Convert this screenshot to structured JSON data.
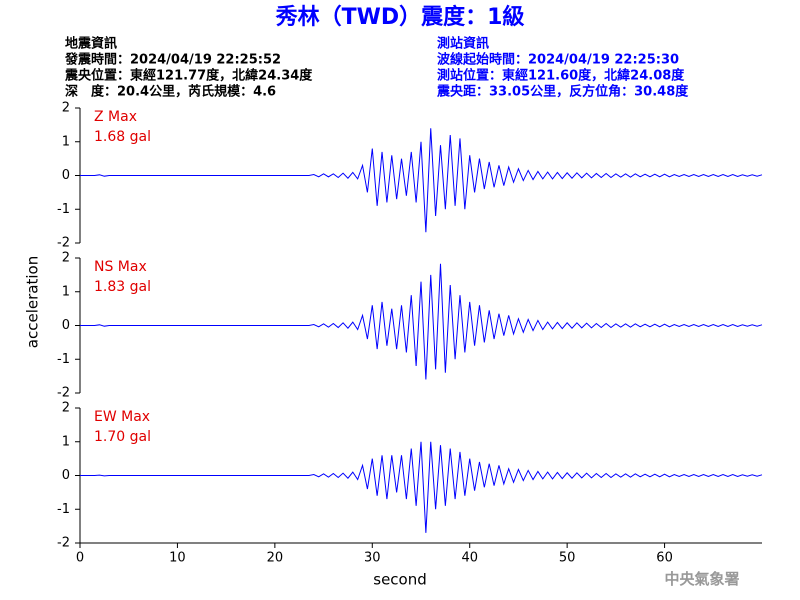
{
  "title": "秀林（TWD）震度：1級",
  "event_info": [
    "地震資訊",
    "發震時間：2024/04/19 22:25:52",
    "震央位置：東經121.77度，北緯24.34度",
    "深　度：20.4公里，芮氏規模：4.6"
  ],
  "station_info": [
    "測站資訊",
    "波線起始時間：2024/04/19 22:25:30",
    "測站位置：東經121.60度，北緯24.08度",
    "震央距：33.05公里，反方位角：30.48度"
  ],
  "ylabel": "acceleration",
  "xlabel": "second",
  "footer": "中央氣象署",
  "chart_data": [
    {
      "type": "line",
      "annotations": [
        "Z Max",
        "1.68 gal"
      ],
      "ylim": [
        -2,
        2
      ],
      "yticks": [
        -2,
        -1,
        0,
        1,
        2
      ],
      "xlim": [
        0,
        70
      ],
      "x": [
        0,
        0.5,
        1,
        1.5,
        2,
        2.5,
        3,
        3.5,
        4,
        4.5,
        5,
        5.5,
        6,
        6.5,
        7,
        7.5,
        8,
        8.5,
        9,
        9.5,
        10,
        10.5,
        11,
        11.5,
        12,
        12.5,
        13,
        13.5,
        14,
        14.5,
        15,
        15.5,
        16,
        16.5,
        17,
        17.5,
        18,
        18.5,
        19,
        19.5,
        20,
        20.5,
        21,
        21.5,
        22,
        22.5,
        23,
        23.5,
        24,
        24.5,
        25,
        25.5,
        26,
        26.5,
        27,
        27.5,
        28,
        28.5,
        29,
        29.5,
        30,
        30.5,
        31,
        31.5,
        32,
        32.5,
        33,
        33.5,
        34,
        34.5,
        35,
        35.5,
        36,
        36.5,
        37,
        37.5,
        38,
        38.5,
        39,
        39.5,
        40,
        40.5,
        41,
        41.5,
        42,
        42.5,
        43,
        43.5,
        44,
        44.5,
        45,
        45.5,
        46,
        46.5,
        47,
        47.5,
        48,
        48.5,
        49,
        49.5,
        50,
        50.5,
        51,
        51.5,
        52,
        52.5,
        53,
        53.5,
        54,
        54.5,
        55,
        55.5,
        56,
        56.5,
        57,
        57.5,
        58,
        58.5,
        59,
        59.5,
        60,
        60.5,
        61,
        61.5,
        62,
        62.5,
        63,
        63.5,
        64,
        64.5,
        65,
        65.5,
        66,
        66.5,
        67,
        67.5,
        68,
        68.5,
        69,
        69.5,
        70
      ],
      "series": [
        {
          "color": "#0000ff",
          "values": [
            0,
            0,
            0,
            0,
            0.02,
            -0.02,
            0,
            0,
            0,
            0,
            0,
            0,
            0,
            0,
            0,
            0,
            0,
            0,
            0,
            0,
            0,
            0,
            0,
            0,
            0,
            0,
            0,
            0,
            0,
            0,
            0,
            0,
            0,
            0,
            0,
            0,
            0,
            0,
            0,
            0,
            0,
            0,
            0,
            0,
            0,
            0,
            0,
            0,
            0.03,
            -0.04,
            0.05,
            -0.04,
            0.05,
            -0.06,
            0.07,
            -0.08,
            0.09,
            -0.1,
            0.3,
            -0.5,
            0.8,
            -0.9,
            0.7,
            -0.8,
            0.6,
            -0.7,
            0.5,
            -0.6,
            0.7,
            -0.8,
            1.0,
            -1.68,
            1.4,
            -1.2,
            0.9,
            -1.0,
            1.2,
            -0.9,
            1.1,
            -1.0,
            0.6,
            -0.5,
            0.5,
            -0.4,
            0.4,
            -0.35,
            0.3,
            -0.3,
            0.25,
            -0.2,
            0.2,
            -0.15,
            0.15,
            -0.12,
            0.12,
            -0.1,
            0.1,
            -0.1,
            0.09,
            -0.09,
            0.08,
            -0.08,
            0.08,
            -0.07,
            0.07,
            -0.07,
            0.06,
            -0.06,
            0.06,
            -0.06,
            0.05,
            -0.05,
            0.05,
            -0.05,
            0.05,
            -0.04,
            0.04,
            -0.04,
            0.04,
            -0.04,
            0.04,
            -0.04,
            0.03,
            -0.03,
            0.03,
            -0.03,
            0.03,
            -0.03,
            0.03,
            -0.03,
            0.03,
            -0.03,
            0.03,
            -0.03,
            0.03,
            -0.03,
            0.02,
            -0.02,
            0.02,
            -0.02,
            0.02
          ]
        }
      ]
    },
    {
      "type": "line",
      "annotations": [
        "NS Max",
        "1.83 gal"
      ],
      "ylim": [
        -2,
        2
      ],
      "yticks": [
        -2,
        -1,
        0,
        1,
        2
      ],
      "xlim": [
        0,
        70
      ],
      "x": [
        0,
        0.5,
        1,
        1.5,
        2,
        2.5,
        3,
        3.5,
        4,
        4.5,
        5,
        5.5,
        6,
        6.5,
        7,
        7.5,
        8,
        8.5,
        9,
        9.5,
        10,
        10.5,
        11,
        11.5,
        12,
        12.5,
        13,
        13.5,
        14,
        14.5,
        15,
        15.5,
        16,
        16.5,
        17,
        17.5,
        18,
        18.5,
        19,
        19.5,
        20,
        20.5,
        21,
        21.5,
        22,
        22.5,
        23,
        23.5,
        24,
        24.5,
        25,
        25.5,
        26,
        26.5,
        27,
        27.5,
        28,
        28.5,
        29,
        29.5,
        30,
        30.5,
        31,
        31.5,
        32,
        32.5,
        33,
        33.5,
        34,
        34.5,
        35,
        35.5,
        36,
        36.5,
        37,
        37.5,
        38,
        38.5,
        39,
        39.5,
        40,
        40.5,
        41,
        41.5,
        42,
        42.5,
        43,
        43.5,
        44,
        44.5,
        45,
        45.5,
        46,
        46.5,
        47,
        47.5,
        48,
        48.5,
        49,
        49.5,
        50,
        50.5,
        51,
        51.5,
        52,
        52.5,
        53,
        53.5,
        54,
        54.5,
        55,
        55.5,
        56,
        56.5,
        57,
        57.5,
        58,
        58.5,
        59,
        59.5,
        60,
        60.5,
        61,
        61.5,
        62,
        62.5,
        63,
        63.5,
        64,
        64.5,
        65,
        65.5,
        66,
        66.5,
        67,
        67.5,
        68,
        68.5,
        69,
        69.5,
        70
      ],
      "series": [
        {
          "color": "#0000ff",
          "values": [
            0,
            0,
            0,
            0,
            0.02,
            -0.02,
            0,
            0,
            0,
            0,
            0,
            0,
            0,
            0,
            0,
            0,
            0,
            0,
            0,
            0,
            0,
            0,
            0,
            0,
            0,
            0,
            0,
            0,
            0,
            0,
            0,
            0,
            0,
            0,
            0,
            0,
            0,
            0,
            0,
            0,
            0,
            0,
            0,
            0,
            0,
            0,
            0,
            0,
            0.03,
            -0.04,
            0.05,
            -0.05,
            0.06,
            -0.06,
            0.08,
            -0.08,
            0.1,
            -0.12,
            0.3,
            -0.4,
            0.6,
            -0.7,
            0.7,
            -0.6,
            0.5,
            -0.7,
            0.6,
            -0.8,
            0.9,
            -1.2,
            1.3,
            -1.6,
            1.5,
            -1.3,
            1.83,
            -1.4,
            1.2,
            -1.0,
            0.9,
            -0.8,
            0.7,
            -0.6,
            0.6,
            -0.5,
            0.45,
            -0.4,
            0.35,
            -0.3,
            0.3,
            -0.25,
            0.2,
            -0.2,
            0.18,
            -0.15,
            0.15,
            -0.12,
            0.1,
            -0.1,
            0.09,
            -0.09,
            0.08,
            -0.08,
            0.08,
            -0.07,
            0.07,
            -0.07,
            0.06,
            -0.06,
            0.06,
            -0.06,
            0.05,
            -0.05,
            0.05,
            -0.05,
            0.05,
            -0.04,
            0.04,
            -0.04,
            0.04,
            -0.04,
            0.04,
            -0.04,
            0.03,
            -0.03,
            0.03,
            -0.03,
            0.03,
            -0.03,
            0.03,
            -0.03,
            0.03,
            -0.03,
            0.03,
            -0.03,
            0.03,
            -0.03,
            0.02,
            -0.02,
            0.02,
            -0.02,
            0.02
          ]
        }
      ]
    },
    {
      "type": "line",
      "annotations": [
        "EW Max",
        "1.70 gal"
      ],
      "ylim": [
        -2,
        2
      ],
      "yticks": [
        -2,
        -1,
        0,
        1,
        2
      ],
      "xlim": [
        0,
        70
      ],
      "xticks": [
        0,
        10,
        20,
        30,
        40,
        50,
        60
      ],
      "x": [
        0,
        0.5,
        1,
        1.5,
        2,
        2.5,
        3,
        3.5,
        4,
        4.5,
        5,
        5.5,
        6,
        6.5,
        7,
        7.5,
        8,
        8.5,
        9,
        9.5,
        10,
        10.5,
        11,
        11.5,
        12,
        12.5,
        13,
        13.5,
        14,
        14.5,
        15,
        15.5,
        16,
        16.5,
        17,
        17.5,
        18,
        18.5,
        19,
        19.5,
        20,
        20.5,
        21,
        21.5,
        22,
        22.5,
        23,
        23.5,
        24,
        24.5,
        25,
        25.5,
        26,
        26.5,
        27,
        27.5,
        28,
        28.5,
        29,
        29.5,
        30,
        30.5,
        31,
        31.5,
        32,
        32.5,
        33,
        33.5,
        34,
        34.5,
        35,
        35.5,
        36,
        36.5,
        37,
        37.5,
        38,
        38.5,
        39,
        39.5,
        40,
        40.5,
        41,
        41.5,
        42,
        42.5,
        43,
        43.5,
        44,
        44.5,
        45,
        45.5,
        46,
        46.5,
        47,
        47.5,
        48,
        48.5,
        49,
        49.5,
        50,
        50.5,
        51,
        51.5,
        52,
        52.5,
        53,
        53.5,
        54,
        54.5,
        55,
        55.5,
        56,
        56.5,
        57,
        57.5,
        58,
        58.5,
        59,
        59.5,
        60,
        60.5,
        61,
        61.5,
        62,
        62.5,
        63,
        63.5,
        64,
        64.5,
        65,
        65.5,
        66,
        66.5,
        67,
        67.5,
        68,
        68.5,
        69,
        69.5,
        70
      ],
      "series": [
        {
          "color": "#0000ff",
          "values": [
            0,
            0,
            0,
            0,
            0.01,
            -0.01,
            0,
            0,
            0,
            0,
            0,
            0,
            0,
            0,
            0,
            0,
            0,
            0,
            0,
            0,
            0,
            0,
            0,
            0,
            0,
            0,
            0,
            0,
            0,
            0,
            0,
            0,
            0,
            0,
            0,
            0,
            0,
            0,
            0,
            0,
            0,
            0,
            0,
            0,
            0,
            0,
            0,
            0,
            0.03,
            -0.04,
            0.05,
            -0.05,
            0.06,
            -0.06,
            0.07,
            -0.08,
            0.1,
            -0.12,
            0.3,
            -0.4,
            0.5,
            -0.6,
            0.6,
            -0.7,
            0.6,
            -0.5,
            0.6,
            -0.7,
            0.8,
            -0.9,
            1.0,
            -1.7,
            1.0,
            -1.0,
            0.9,
            -0.9,
            0.8,
            -0.7,
            0.7,
            -0.6,
            0.5,
            -0.45,
            0.4,
            -0.35,
            0.35,
            -0.3,
            0.3,
            -0.25,
            0.2,
            -0.2,
            0.18,
            -0.15,
            0.15,
            -0.12,
            0.12,
            -0.1,
            0.1,
            -0.1,
            0.09,
            -0.09,
            0.08,
            -0.08,
            0.08,
            -0.07,
            0.07,
            -0.07,
            0.06,
            -0.06,
            0.06,
            -0.06,
            0.05,
            -0.05,
            0.05,
            -0.05,
            0.05,
            -0.04,
            0.04,
            -0.04,
            0.04,
            -0.04,
            0.04,
            -0.04,
            0.03,
            -0.03,
            0.03,
            -0.03,
            0.03,
            -0.03,
            0.03,
            -0.03,
            0.03,
            -0.03,
            0.03,
            -0.03,
            0.03,
            -0.03,
            0.02,
            -0.02,
            0.02,
            -0.02,
            0.02
          ]
        }
      ]
    }
  ]
}
